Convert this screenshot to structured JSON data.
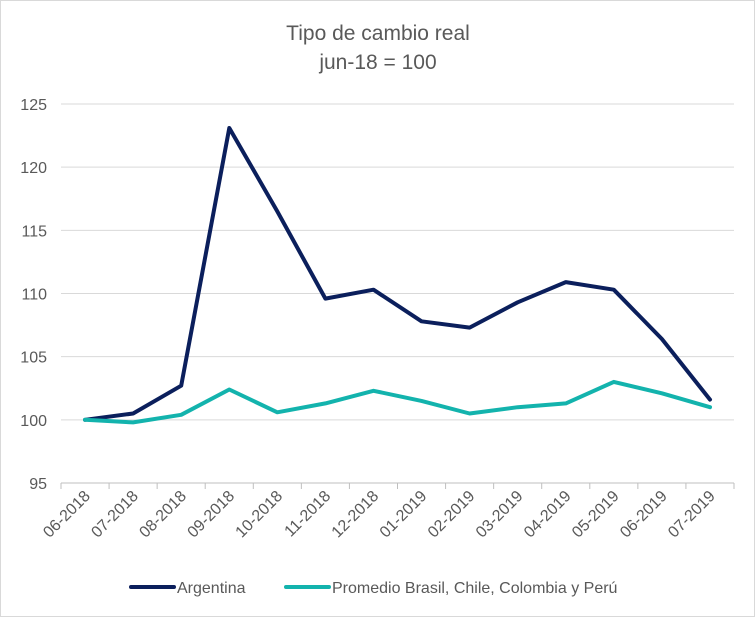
{
  "chart_data": {
    "type": "line",
    "title": "Tipo de cambio real",
    "subtitle": "jun-18 = 100",
    "xlabel": "",
    "ylabel": "",
    "categories": [
      "06-2018",
      "07-2018",
      "08-2018",
      "09-2018",
      "10-2018",
      "11-2018",
      "12-2018",
      "01-2019",
      "02-2019",
      "03-2019",
      "04-2019",
      "05-2019",
      "06-2019",
      "07-2019"
    ],
    "ylim": [
      95,
      125
    ],
    "yticks": [
      95,
      100,
      105,
      110,
      115,
      120,
      125
    ],
    "grid": true,
    "legend_position": "bottom",
    "series": [
      {
        "name": "Argentina",
        "color": "#0b1f5c",
        "values": [
          100.0,
          100.5,
          102.7,
          123.1,
          116.5,
          109.6,
          110.3,
          107.8,
          107.3,
          109.3,
          110.9,
          110.3,
          106.4,
          101.6
        ]
      },
      {
        "name": "Promedio Brasil, Chile, Colombia y Perú",
        "color": "#13b3ad",
        "values": [
          100.0,
          99.8,
          100.4,
          102.4,
          100.6,
          101.3,
          102.3,
          101.5,
          100.5,
          101.0,
          101.3,
          103.0,
          102.1,
          101.0
        ]
      }
    ]
  }
}
